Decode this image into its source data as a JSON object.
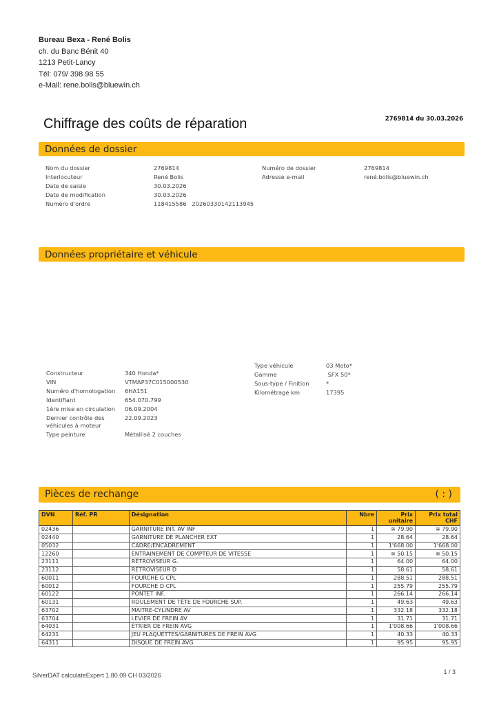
{
  "sender": {
    "name": "Bureau Bexa - René Bolis",
    "street": "ch. du Banc Bénit 40",
    "city": "1213 Petit-Lancy",
    "tel": "Tél: 079/ 398 98 55",
    "email": "e-Mail: rene.bolis@bluewin.ch"
  },
  "document": {
    "title": "Chiffrage des coûts de réparation",
    "reference": "2769814 du 30.03.2026"
  },
  "dossier": {
    "heading": "Données de dossier",
    "left": [
      {
        "label": "Nom du dossier",
        "value": "2769814"
      },
      {
        "label": "Interlocuteur",
        "value": "René Bolis"
      },
      {
        "label": "Date de saisie",
        "value": "30.03.2026"
      },
      {
        "label": "Date de modification",
        "value": "30.03.2026"
      },
      {
        "label": "Numéro d'ordre",
        "value": "118415586   20260330142113945"
      }
    ],
    "right": [
      {
        "label": "Numéro de dossier",
        "value": "2769814"
      },
      {
        "label": "Adresse e-mail",
        "value": "rené.bolis@bluewin.ch"
      }
    ]
  },
  "vehicle": {
    "heading": "Données propriétaire et véhicule",
    "left": [
      {
        "label": "Constructeur",
        "value": "340 Honda*"
      },
      {
        "label": "VIN",
        "value": "VTMAP37C015000530"
      },
      {
        "label": "Numéro d'homologation",
        "value": "6HA151"
      },
      {
        "label": "Identifiant",
        "value": "654.070.799"
      },
      {
        "label": "1ère mise en circulation",
        "value": "06.09.2004"
      },
      {
        "label": "Dernier contrôle des véhicules à moteur",
        "value": "22.09.2023"
      },
      {
        "label": "Type peinture",
        "value": "Métallisé 2 couches"
      }
    ],
    "right": [
      {
        "label": "Type véhicule",
        "value": "03 Moto*"
      },
      {
        "label": "Gamme",
        "value": " SFX 50*"
      },
      {
        "label": "Sous-type / Finition",
        "value": "*"
      },
      {
        "label": "Kilométrage km",
        "value": "17395"
      }
    ]
  },
  "parts": {
    "heading": "Pièces de rechange",
    "heading_right": "( : )",
    "columns": [
      "DVN",
      "Réf. PR",
      "Désignation",
      "Nbre",
      "Prix unitaire",
      "Prix total CHF"
    ],
    "rows": [
      [
        "02436",
        "",
        "GARNITURE INT. AV INF",
        "1",
        "≅ 79.90",
        "≅ 79.90"
      ],
      [
        "02440",
        "",
        "GARNITURE DE PLANCHER EXT",
        "1",
        "28.64",
        "28.64"
      ],
      [
        "05032",
        "",
        "CADRE/ENCADREMENT",
        "1",
        "1'668.00",
        "1'668.00"
      ],
      [
        "12260",
        "",
        "ENTRAINEMENT DE COMPTEUR DE VITESSE",
        "1",
        "≅ 50.15",
        "≅ 50.15"
      ],
      [
        "23111",
        "",
        "RÉTROVISEUR G.",
        "1",
        "64.00",
        "64.00"
      ],
      [
        "23112",
        "",
        "RÉTROVISEUR D",
        "1",
        "58.61",
        "58.61"
      ],
      [
        "60011",
        "",
        "FOURCHE G CPL",
        "1",
        "288.51",
        "288.51"
      ],
      [
        "60012",
        "",
        "FOURCHE D CPL",
        "1",
        "255.79",
        "255.79"
      ],
      [
        "60122",
        "",
        "PONTET INF.",
        "1",
        "266.14",
        "266.14"
      ],
      [
        "60131",
        "",
        "ROULEMENT DE TÊTE DE FOURCHE SUP.",
        "1",
        "49.63",
        "49.63"
      ],
      [
        "63702",
        "",
        "MAITRE-CYLINDRE AV",
        "1",
        "332.18",
        "332.18"
      ],
      [
        "63704",
        "",
        "LEVIER DE FREIN AV",
        "1",
        "31.71",
        "31.71"
      ],
      [
        "64031",
        "",
        "ÉTRIER DE FREIN AVG",
        "1",
        "1'008.66",
        "1'008.66"
      ],
      [
        "64231",
        "",
        "JEU PLAQUETTES/GARNITURES DE FREIN AVG",
        "1",
        "40.33",
        "40.33"
      ],
      [
        "64311",
        "",
        "DISQUE DE FREIN AVG",
        "1",
        "95.95",
        "95.95"
      ]
    ]
  },
  "footer": {
    "software": "SilverDAT calculateExpert 1.80.09   CH 03/2026",
    "page": "1 / 3"
  },
  "colors": {
    "accent": "#fdb913"
  }
}
